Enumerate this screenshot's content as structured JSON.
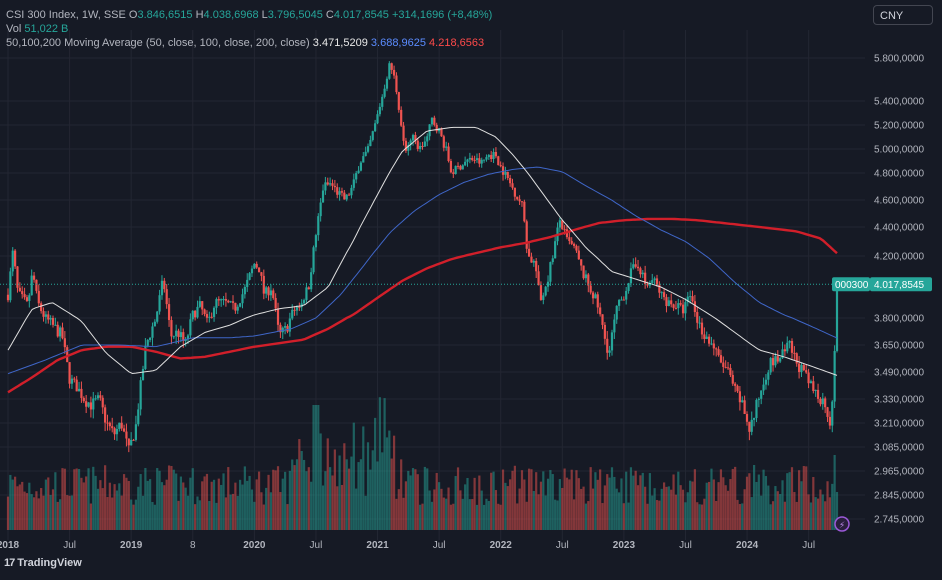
{
  "legend": {
    "symbol": "CSI 300 Index, 1W, SSE",
    "o_label": "O",
    "o_val": "3.846,6515",
    "h_label": "H",
    "h_val": "4.038,6968",
    "l_label": "L",
    "l_val": "3.796,5045",
    "c_label": "C",
    "c_val": "4.017,8545",
    "change": "+314,1696 (+8,48%)",
    "vol_label": "Vol",
    "vol_val": "51,022 B",
    "ma_label": "50,100,200 Moving Average (50, close, 100, close, 200, close)",
    "ma50": "3.471,5209",
    "ma100": "3.688,9625",
    "ma200": "4.218,6563"
  },
  "currency_button": "CNY",
  "footer": {
    "logo": "17",
    "brand": "TradingView"
  },
  "colors": {
    "up": "#26a69a",
    "down": "#ef5350",
    "ma50": "#e0e0e0",
    "ma100": "#3f66c8",
    "ma200": "#d11f2a",
    "grid": "#232632",
    "background": "#161a25"
  },
  "chart_data": {
    "type": "candlestick",
    "title": "CSI 300 Index, 1W, SSE",
    "y_ticks": [
      "5.800,0000",
      "5.400,0000",
      "5.200,0000",
      "5.000,0000",
      "4.800,0000",
      "4.600,0000",
      "4.400,0000",
      "4.200,0000",
      "3.800,0000",
      "3.650,0000",
      "3.490,0000",
      "3.330,0000",
      "3.210,0000",
      "3.085,0000",
      "2.965,0000",
      "2.845,0000",
      "2.745,0000"
    ],
    "y_tick_values": [
      5800,
      5400,
      5200,
      5000,
      4800,
      4600,
      4400,
      4200,
      3800,
      3650,
      3490,
      3330,
      3210,
      3085,
      2965,
      2845,
      2745
    ],
    "x_ticks": [
      "2018",
      "Jul",
      "2019",
      "8",
      "2020",
      "Jul",
      "2021",
      "Jul",
      "2022",
      "Jul",
      "2023",
      "Jul",
      "2024",
      "Jul"
    ],
    "x_tick_dates": [
      2018.0,
      2018.5,
      2019.0,
      2019.5,
      2020.0,
      2020.5,
      2021.0,
      2021.5,
      2022.0,
      2022.5,
      2023.0,
      2023.5,
      2024.0,
      2024.5
    ],
    "bold_x_ticks": [
      "2018",
      "2019",
      "2020",
      "2021",
      "2022",
      "2023",
      "2024"
    ],
    "price_label": "000300",
    "last_price": "4.017,8545",
    "last_value": 4017.85,
    "date_range": [
      2018.0,
      2024.73
    ],
    "close_path": [
      [
        2018.0,
        3950
      ],
      [
        2018.04,
        4230
      ],
      [
        2018.08,
        3960
      ],
      [
        2018.16,
        3880
      ],
      [
        2018.2,
        4100
      ],
      [
        2018.24,
        3900
      ],
      [
        2018.3,
        3800
      ],
      [
        2018.36,
        3760
      ],
      [
        2018.44,
        3700
      ],
      [
        2018.5,
        3450
      ],
      [
        2018.56,
        3400
      ],
      [
        2018.62,
        3330
      ],
      [
        2018.68,
        3300
      ],
      [
        2018.74,
        3330
      ],
      [
        2018.8,
        3210
      ],
      [
        2018.86,
        3150
      ],
      [
        2018.92,
        3210
      ],
      [
        2018.98,
        3060
      ],
      [
        2019.04,
        3200
      ],
      [
        2019.12,
        3650
      ],
      [
        2019.2,
        3800
      ],
      [
        2019.26,
        4050
      ],
      [
        2019.32,
        3700
      ],
      [
        2019.38,
        3720
      ],
      [
        2019.44,
        3650
      ],
      [
        2019.5,
        3820
      ],
      [
        2019.56,
        3880
      ],
      [
        2019.62,
        3760
      ],
      [
        2019.68,
        3900
      ],
      [
        2019.76,
        3900
      ],
      [
        2019.84,
        3860
      ],
      [
        2019.92,
        3980
      ],
      [
        2020.0,
        4150
      ],
      [
        2020.04,
        4120
      ],
      [
        2020.08,
        3950
      ],
      [
        2020.14,
        4000
      ],
      [
        2020.2,
        3700
      ],
      [
        2020.26,
        3740
      ],
      [
        2020.32,
        3850
      ],
      [
        2020.38,
        3900
      ],
      [
        2020.44,
        4000
      ],
      [
        2020.5,
        4350
      ],
      [
        2020.56,
        4700
      ],
      [
        2020.62,
        4720
      ],
      [
        2020.68,
        4650
      ],
      [
        2020.74,
        4600
      ],
      [
        2020.8,
        4700
      ],
      [
        2020.86,
        4900
      ],
      [
        2020.92,
        4980
      ],
      [
        2020.98,
        5200
      ],
      [
        2021.04,
        5450
      ],
      [
        2021.1,
        5750
      ],
      [
        2021.14,
        5600
      ],
      [
        2021.18,
        5300
      ],
      [
        2021.22,
        4980
      ],
      [
        2021.28,
        5100
      ],
      [
        2021.34,
        5000
      ],
      [
        2021.4,
        5080
      ],
      [
        2021.44,
        5250
      ],
      [
        2021.5,
        5150
      ],
      [
        2021.56,
        4980
      ],
      [
        2021.6,
        4800
      ],
      [
        2021.66,
        4850
      ],
      [
        2021.72,
        4900
      ],
      [
        2021.78,
        4920
      ],
      [
        2021.84,
        4880
      ],
      [
        2021.9,
        4950
      ],
      [
        2021.96,
        4950
      ],
      [
        2022.0,
        4850
      ],
      [
        2022.06,
        4750
      ],
      [
        2022.12,
        4650
      ],
      [
        2022.18,
        4550
      ],
      [
        2022.22,
        4200
      ],
      [
        2022.28,
        4150
      ],
      [
        2022.32,
        3900
      ],
      [
        2022.38,
        4050
      ],
      [
        2022.42,
        4200
      ],
      [
        2022.48,
        4450
      ],
      [
        2022.54,
        4300
      ],
      [
        2022.6,
        4250
      ],
      [
        2022.66,
        4100
      ],
      [
        2022.72,
        4000
      ],
      [
        2022.78,
        3900
      ],
      [
        2022.84,
        3700
      ],
      [
        2022.88,
        3600
      ],
      [
        2022.94,
        3850
      ],
      [
        2023.0,
        3950
      ],
      [
        2023.06,
        4100
      ],
      [
        2023.12,
        4150
      ],
      [
        2023.18,
        4000
      ],
      [
        2023.24,
        4050
      ],
      [
        2023.3,
        3950
      ],
      [
        2023.36,
        3900
      ],
      [
        2023.42,
        3880
      ],
      [
        2023.48,
        3850
      ],
      [
        2023.54,
        3950
      ],
      [
        2023.6,
        3780
      ],
      [
        2023.66,
        3700
      ],
      [
        2023.72,
        3650
      ],
      [
        2023.78,
        3550
      ],
      [
        2023.84,
        3500
      ],
      [
        2023.9,
        3380
      ],
      [
        2023.96,
        3300
      ],
      [
        2024.02,
        3180
      ],
      [
        2024.06,
        3250
      ],
      [
        2024.12,
        3400
      ],
      [
        2024.18,
        3540
      ],
      [
        2024.24,
        3560
      ],
      [
        2024.3,
        3600
      ],
      [
        2024.34,
        3650
      ],
      [
        2024.4,
        3550
      ],
      [
        2024.46,
        3480
      ],
      [
        2024.52,
        3400
      ],
      [
        2024.58,
        3350
      ],
      [
        2024.64,
        3300
      ],
      [
        2024.68,
        3200
      ],
      [
        2024.7,
        3450
      ],
      [
        2024.72,
        3700
      ],
      [
        2024.73,
        4017
      ]
    ],
    "ma50_path": [
      [
        2018.0,
        3620
      ],
      [
        2018.2,
        3860
      ],
      [
        2018.36,
        3900
      ],
      [
        2018.6,
        3780
      ],
      [
        2018.8,
        3600
      ],
      [
        2019.0,
        3480
      ],
      [
        2019.2,
        3500
      ],
      [
        2019.4,
        3640
      ],
      [
        2019.6,
        3720
      ],
      [
        2019.8,
        3760
      ],
      [
        2020.0,
        3820
      ],
      [
        2020.2,
        3860
      ],
      [
        2020.4,
        3880
      ],
      [
        2020.6,
        4000
      ],
      [
        2020.8,
        4300
      ],
      [
        2021.0,
        4640
      ],
      [
        2021.2,
        4980
      ],
      [
        2021.4,
        5150
      ],
      [
        2021.6,
        5180
      ],
      [
        2021.8,
        5180
      ],
      [
        2021.96,
        5100
      ],
      [
        2022.1,
        4950
      ],
      [
        2022.3,
        4700
      ],
      [
        2022.5,
        4450
      ],
      [
        2022.7,
        4250
      ],
      [
        2022.9,
        4100
      ],
      [
        2023.1,
        4050
      ],
      [
        2023.3,
        4000
      ],
      [
        2023.5,
        3920
      ],
      [
        2023.7,
        3820
      ],
      [
        2023.9,
        3720
      ],
      [
        2024.1,
        3620
      ],
      [
        2024.3,
        3580
      ],
      [
        2024.5,
        3530
      ],
      [
        2024.73,
        3470
      ]
    ],
    "ma100_path": [
      [
        2018.0,
        3480
      ],
      [
        2018.3,
        3560
      ],
      [
        2018.6,
        3650
      ],
      [
        2018.9,
        3650
      ],
      [
        2019.2,
        3640
      ],
      [
        2019.5,
        3690
      ],
      [
        2019.8,
        3690
      ],
      [
        2020.0,
        3700
      ],
      [
        2020.3,
        3740
      ],
      [
        2020.5,
        3800
      ],
      [
        2020.7,
        3950
      ],
      [
        2020.9,
        4150
      ],
      [
        2021.1,
        4360
      ],
      [
        2021.3,
        4520
      ],
      [
        2021.5,
        4640
      ],
      [
        2021.7,
        4730
      ],
      [
        2021.9,
        4790
      ],
      [
        2022.1,
        4830
      ],
      [
        2022.3,
        4850
      ],
      [
        2022.5,
        4810
      ],
      [
        2022.7,
        4700
      ],
      [
        2022.9,
        4600
      ],
      [
        2023.1,
        4480
      ],
      [
        2023.3,
        4380
      ],
      [
        2023.5,
        4300
      ],
      [
        2023.7,
        4180
      ],
      [
        2023.9,
        4030
      ],
      [
        2024.1,
        3900
      ],
      [
        2024.3,
        3820
      ],
      [
        2024.5,
        3760
      ],
      [
        2024.73,
        3689
      ]
    ],
    "ma200_path": [
      [
        2018.0,
        3370
      ],
      [
        2018.2,
        3460
      ],
      [
        2018.4,
        3560
      ],
      [
        2018.6,
        3620
      ],
      [
        2018.8,
        3640
      ],
      [
        2019.0,
        3640
      ],
      [
        2019.2,
        3610
      ],
      [
        2019.4,
        3570
      ],
      [
        2019.6,
        3580
      ],
      [
        2019.8,
        3610
      ],
      [
        2020.0,
        3640
      ],
      [
        2020.2,
        3660
      ],
      [
        2020.4,
        3680
      ],
      [
        2020.6,
        3740
      ],
      [
        2020.8,
        3820
      ],
      [
        2021.0,
        3930
      ],
      [
        2021.2,
        4040
      ],
      [
        2021.4,
        4120
      ],
      [
        2021.6,
        4180
      ],
      [
        2021.8,
        4220
      ],
      [
        2022.0,
        4260
      ],
      [
        2022.2,
        4290
      ],
      [
        2022.4,
        4330
      ],
      [
        2022.6,
        4380
      ],
      [
        2022.8,
        4430
      ],
      [
        2023.0,
        4450
      ],
      [
        2023.2,
        4460
      ],
      [
        2023.4,
        4460
      ],
      [
        2023.6,
        4450
      ],
      [
        2023.8,
        4430
      ],
      [
        2024.0,
        4410
      ],
      [
        2024.2,
        4390
      ],
      [
        2024.4,
        4370
      ],
      [
        2024.6,
        4320
      ],
      [
        2024.73,
        4219
      ]
    ]
  }
}
